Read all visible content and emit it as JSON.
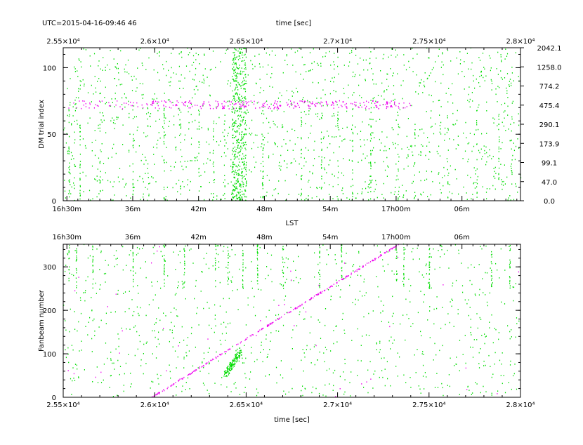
{
  "header": {
    "utc": "UTC=2015-04-16-09:46 46",
    "top_time_label": "time [sec]"
  },
  "colors": {
    "candidate": "#00dd00",
    "pulsar": "#ee00ee",
    "axes": "#000000"
  },
  "chart_data": [
    {
      "type": "scatter",
      "panel": "top",
      "xlabel": "LST",
      "ylabel": "DM trial index",
      "top_axis_label": "time [sec]",
      "xlim": [
        25500,
        28000
      ],
      "ylim": [
        0,
        115
      ],
      "time_ticks": [
        "2.55×10⁴",
        "2.6×10⁴",
        "2.65×10⁴",
        "2.7×10⁴",
        "2.75×10⁴",
        "2.8×10⁴"
      ],
      "time_tick_values": [
        25500,
        26000,
        26500,
        27000,
        27500,
        28000
      ],
      "lst_ticks": [
        "16h30m",
        "36m",
        "42m",
        "48m",
        "54m",
        "17h00m",
        "06m"
      ],
      "lst_tick_values": [
        25520,
        25880,
        26240,
        26600,
        26960,
        27320,
        27680
      ],
      "y_ticks": [
        0,
        50,
        100
      ],
      "right_axis_label": "",
      "right_ticks": [
        "0.0",
        "47.0",
        "99.1",
        "173.9",
        "290.1",
        "475.4",
        "774.2",
        "1258.0",
        "2042.1"
      ],
      "right_tick_indices": [
        0,
        10,
        20,
        30,
        40,
        50,
        60,
        70,
        80
      ],
      "series": [
        {
          "kind": "noise",
          "color": "#00dd00",
          "count": 1400,
          "y_range": [
            0,
            115
          ]
        },
        {
          "kind": "burst",
          "color": "#00dd00",
          "x_center": 26460,
          "x_width": 80,
          "count": 450,
          "y_range": [
            0,
            115
          ]
        },
        {
          "kind": "vertical_streaks",
          "color": "#00dd00",
          "x": [
            25530,
            25560,
            25590,
            25700,
            25880,
            25960,
            26050,
            26140,
            26240,
            26320,
            26380,
            26590,
            26800,
            26910,
            27000,
            27080,
            27180,
            27330,
            27420,
            27600,
            27760,
            27880,
            27950
          ],
          "y_range": [
            0,
            70
          ]
        },
        {
          "kind": "dm_band",
          "color": "#ee00ee",
          "x_range": [
            25520,
            27400
          ],
          "y_center": 72,
          "y_spread": 3,
          "count": 360
        }
      ]
    },
    {
      "type": "scatter",
      "panel": "bottom",
      "xlabel": "time [sec]",
      "ylabel": "Fanbeam number",
      "top_axis_label": "",
      "xlim": [
        25500,
        28000
      ],
      "ylim": [
        0,
        352
      ],
      "time_ticks": [
        "2.55×10⁴",
        "2.6×10⁴",
        "2.65×10⁴",
        "2.7×10⁴",
        "2.75×10⁴",
        "2.8×10⁴"
      ],
      "time_tick_values": [
        25500,
        26000,
        26500,
        27000,
        27500,
        28000
      ],
      "lst_ticks": [
        "16h30m",
        "36m",
        "42m",
        "48m",
        "54m",
        "17h00m",
        "06m"
      ],
      "lst_tick_values": [
        25520,
        25880,
        26240,
        26600,
        26960,
        27320,
        27680
      ],
      "y_ticks": [
        0,
        100,
        200,
        300
      ],
      "series": [
        {
          "kind": "noise",
          "color": "#00dd00",
          "count": 900,
          "y_range": [
            0,
            352
          ]
        },
        {
          "kind": "vertical_streaks",
          "color": "#00dd00",
          "x": [
            25530,
            25570,
            25660,
            25880,
            26050,
            26160,
            26330,
            26400,
            26480,
            26560,
            26700,
            26900,
            27020,
            27320,
            27360,
            27500,
            27840,
            27940
          ],
          "y_range": [
            250,
            352
          ]
        },
        {
          "kind": "cluster",
          "color": "#00dd00",
          "x_range": [
            26380,
            26470
          ],
          "y_range": [
            50,
            105
          ],
          "count": 150
        },
        {
          "kind": "drift_line",
          "color": "#ee00ee",
          "x_start": 25985,
          "y_start": 0,
          "x_end": 27335,
          "y_end": 352,
          "count": 260
        },
        {
          "kind": "noise",
          "color": "#ee00ee",
          "count": 40,
          "y_range": [
            0,
            352
          ]
        }
      ]
    }
  ]
}
